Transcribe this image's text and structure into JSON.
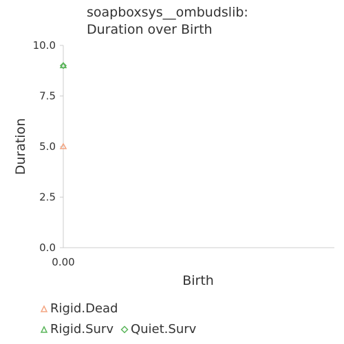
{
  "chart_data": {
    "type": "scatter",
    "title": [
      "soapboxsys__ombudslib:",
      "Duration over Birth"
    ],
    "xlabel": "Birth",
    "ylabel": "Duration",
    "xlim": [
      0,
      1
    ],
    "ylim": [
      0,
      10
    ],
    "x_ticks": [
      "0.00"
    ],
    "y_ticks": [
      "0.0",
      "2.5",
      "5.0",
      "7.5",
      "10.0"
    ],
    "y_tick_values": [
      0,
      2.5,
      5.0,
      7.5,
      10.0
    ],
    "legend_placement": "bottom",
    "grid": false,
    "series": [
      {
        "name": "Rigid.Dead",
        "marker": "triangle",
        "color": "#f4a582",
        "points": [
          {
            "x": 0,
            "y": 5.0
          }
        ]
      },
      {
        "name": "Rigid.Surv",
        "marker": "triangle",
        "color": "#5ab55a",
        "points": [
          {
            "x": 0,
            "y": 9.0
          }
        ]
      },
      {
        "name": "Quiet.Surv",
        "marker": "diamond",
        "color": "#5ab55a",
        "points": [
          {
            "x": 0,
            "y": 9.0
          }
        ]
      }
    ]
  }
}
